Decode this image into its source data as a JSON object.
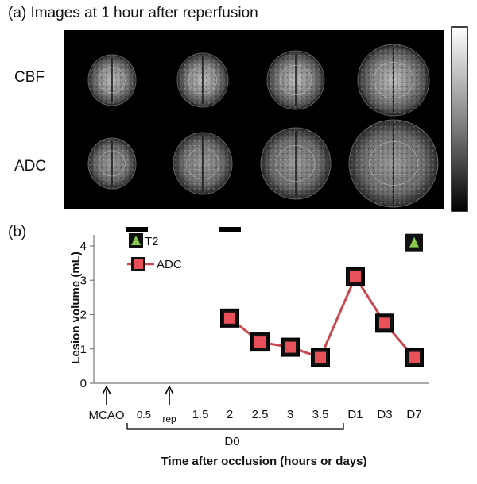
{
  "panel_a": {
    "label": "(a) Images at 1 hour after reperfusion",
    "row_labels": [
      "CBF",
      "ADC"
    ],
    "image_columns": 4,
    "colorbar": "grayscale"
  },
  "panel_b": {
    "label": "(b)",
    "chart_data": {
      "type": "line",
      "ylabel": "Lesion volume (mL)",
      "xlabel": "Time after occlusion (hours or days)",
      "ylim": [
        0,
        4
      ],
      "yticks": [
        "0",
        "1",
        "2",
        "3",
        "4"
      ],
      "event_labels": [
        "MCAO",
        "rep"
      ],
      "categories": [
        "0.5",
        "1.5",
        "2",
        "2.5",
        "3",
        "3.5",
        "D1",
        "D3",
        "D7"
      ],
      "bracket_label": "D0",
      "series": [
        {
          "name": "ADC",
          "color": "#e8505a",
          "x": [
            "2",
            "2.5",
            "3",
            "3.5",
            "D1",
            "D3",
            "D7"
          ],
          "values": [
            1.9,
            1.2,
            1.05,
            0.75,
            3.1,
            1.75,
            0.75
          ]
        },
        {
          "name": "T2",
          "color": "#88c84a",
          "x": [
            "D7"
          ],
          "values": [
            4.1
          ]
        }
      ]
    }
  }
}
